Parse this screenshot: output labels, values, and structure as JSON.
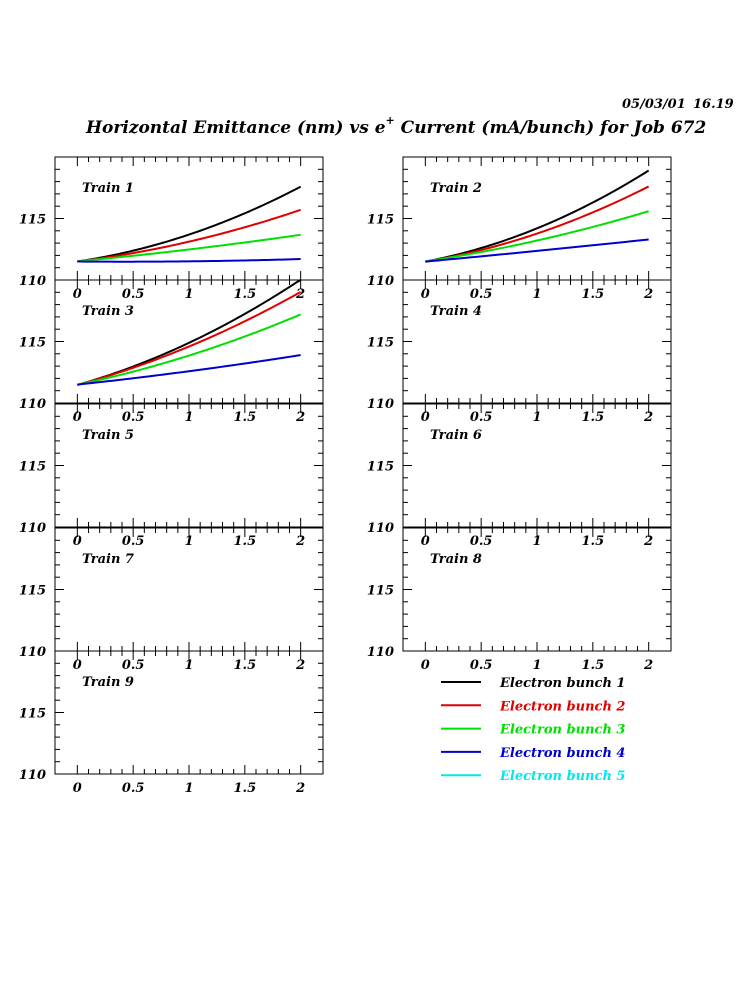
{
  "header": {
    "date": "05/03/01",
    "time": "16.19",
    "title_main": "Horizontal Emittance (nm) vs e",
    "title_sup": "+",
    "title_rest": " Current (mA/bunch) for Job 672"
  },
  "axes": {
    "x_ticks": [
      "0",
      "0.5",
      "1",
      "1.5",
      "2"
    ],
    "y_ticks": [
      "110",
      "115"
    ]
  },
  "legend": {
    "entries": [
      {
        "label": "Electron bunch 1",
        "color": "#000000"
      },
      {
        "label": "Electron bunch 2",
        "color": "#e00000"
      },
      {
        "label": "Electron bunch 3",
        "color": "#00e000"
      },
      {
        "label": "Electron bunch 4",
        "color": "#0000cc"
      },
      {
        "label": "Electron bunch 5",
        "color": "#00e8e8"
      }
    ]
  },
  "chart_data": [
    {
      "type": "line",
      "title": "Train 1",
      "xlim": [
        -0.2,
        2.2
      ],
      "ylim": [
        110,
        120
      ],
      "x": [
        0,
        0.5,
        1,
        1.5,
        2
      ],
      "series": [
        {
          "name": "Electron bunch 1",
          "color": "#000000",
          "values": [
            111.5,
            112.4,
            113.7,
            115.4,
            117.6
          ]
        },
        {
          "name": "Electron bunch 2",
          "color": "#e00000",
          "values": [
            111.5,
            112.2,
            113.1,
            114.3,
            115.7
          ]
        },
        {
          "name": "Electron bunch 3",
          "color": "#00e000",
          "values": [
            111.5,
            112.0,
            112.5,
            113.0,
            113.7
          ]
        },
        {
          "name": "Electron bunch 4",
          "color": "#0000cc",
          "values": [
            111.5,
            111.5,
            111.5,
            111.6,
            111.7
          ]
        }
      ]
    },
    {
      "type": "line",
      "title": "Train 2",
      "xlim": [
        -0.2,
        2.2
      ],
      "ylim": [
        110,
        120
      ],
      "x": [
        0,
        0.5,
        1,
        1.5,
        2
      ],
      "series": [
        {
          "name": "Electron bunch 1",
          "color": "#000000",
          "values": [
            111.5,
            112.6,
            114.2,
            116.3,
            118.9
          ]
        },
        {
          "name": "Electron bunch 2",
          "color": "#e00000",
          "values": [
            111.5,
            112.4,
            113.8,
            115.5,
            117.6
          ]
        },
        {
          "name": "Electron bunch 3",
          "color": "#00e000",
          "values": [
            111.5,
            112.3,
            113.2,
            114.3,
            115.6
          ]
        },
        {
          "name": "Electron bunch 4",
          "color": "#0000cc",
          "values": [
            111.5,
            111.9,
            112.4,
            112.8,
            113.3
          ]
        }
      ]
    },
    {
      "type": "line",
      "title": "Train 3",
      "xlim": [
        -0.2,
        2.2
      ],
      "ylim": [
        110,
        120
      ],
      "x": [
        0,
        0.5,
        1,
        1.5,
        2
      ],
      "series": [
        {
          "name": "Electron bunch 1",
          "color": "#000000",
          "values": [
            111.5,
            112.9,
            114.9,
            117.3,
            120.0
          ]
        },
        {
          "name": "Electron bunch 2",
          "color": "#e00000",
          "values": [
            111.5,
            112.8,
            114.6,
            116.7,
            119.0
          ]
        },
        {
          "name": "Electron bunch 3",
          "color": "#00e000",
          "values": [
            111.5,
            112.5,
            113.9,
            115.4,
            117.2
          ]
        },
        {
          "name": "Electron bunch 4",
          "color": "#0000cc",
          "values": [
            111.5,
            112.0,
            112.6,
            113.2,
            113.9
          ]
        }
      ]
    },
    {
      "type": "line",
      "title": "Train 4",
      "xlim": [
        -0.2,
        2.2
      ],
      "ylim": [
        110,
        120
      ],
      "series": []
    },
    {
      "type": "line",
      "title": "Train 5",
      "xlim": [
        -0.2,
        2.2
      ],
      "ylim": [
        110,
        120
      ],
      "series": []
    },
    {
      "type": "line",
      "title": "Train 6",
      "xlim": [
        -0.2,
        2.2
      ],
      "ylim": [
        110,
        120
      ],
      "series": []
    },
    {
      "type": "line",
      "title": "Train 7",
      "xlim": [
        -0.2,
        2.2
      ],
      "ylim": [
        110,
        120
      ],
      "series": []
    },
    {
      "type": "line",
      "title": "Train 8",
      "xlim": [
        -0.2,
        2.2
      ],
      "ylim": [
        110,
        120
      ],
      "series": []
    },
    {
      "type": "line",
      "title": "Train 9",
      "xlim": [
        -0.2,
        2.2
      ],
      "ylim": [
        110,
        120
      ],
      "series": []
    }
  ]
}
